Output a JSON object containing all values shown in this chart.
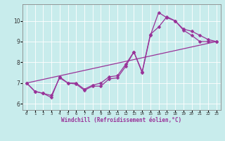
{
  "xlabel": "Windchill (Refroidissement éolien,°C)",
  "background_color": "#c8ecec",
  "line_color": "#993399",
  "grid_color": "#ffffff",
  "xlim": [
    -0.5,
    23.5
  ],
  "ylim": [
    5.7,
    10.8
  ],
  "xticks": [
    0,
    1,
    2,
    3,
    4,
    5,
    6,
    7,
    8,
    9,
    10,
    11,
    12,
    13,
    14,
    15,
    16,
    17,
    18,
    19,
    20,
    21,
    22,
    23
  ],
  "yticks": [
    6,
    7,
    8,
    9,
    10
  ],
  "line1_x": [
    0,
    1,
    2,
    3,
    4,
    5,
    6,
    7,
    8,
    9,
    10,
    11,
    12,
    13,
    14,
    15,
    16,
    17,
    18,
    19,
    20,
    21,
    22,
    23
  ],
  "line1_y": [
    7.0,
    6.6,
    6.5,
    6.3,
    7.3,
    7.0,
    6.95,
    6.65,
    6.85,
    6.85,
    7.2,
    7.25,
    7.8,
    8.5,
    7.5,
    9.3,
    10.4,
    10.15,
    10.0,
    9.55,
    9.3,
    9.0,
    9.0,
    9.0
  ],
  "line2_x": [
    0,
    1,
    2,
    3,
    4,
    5,
    6,
    7,
    8,
    9,
    10,
    11,
    12,
    13,
    14,
    15,
    16,
    17,
    18,
    19,
    20,
    21,
    22,
    23
  ],
  "line2_y": [
    7.0,
    6.6,
    6.5,
    6.4,
    7.25,
    7.0,
    7.0,
    6.7,
    6.9,
    7.0,
    7.3,
    7.35,
    7.9,
    8.5,
    7.55,
    9.35,
    9.7,
    10.2,
    10.0,
    9.6,
    9.5,
    9.3,
    9.1,
    9.0
  ],
  "line3_x": [
    0,
    23
  ],
  "line3_y": [
    7.0,
    9.0
  ],
  "markersize": 2.5,
  "linewidth": 0.9
}
